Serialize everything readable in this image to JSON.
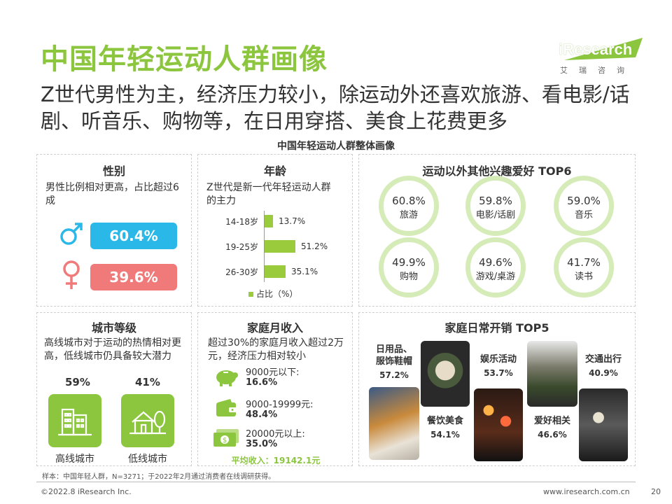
{
  "header": {
    "title": "中国年轻运动人群画像",
    "subtitle": "Z世代男性为主，经济压力较小，除运动外还喜欢旅游、看电影/话剧、听音乐、购物等，在日用穿搭、美食上花费更多",
    "logo_text": "iResearch",
    "logo_cn": "艾瑞咨询"
  },
  "section_title": "中国年轻运动人群整体画像",
  "gender": {
    "title": "性别",
    "desc": "男性比例相对更高，占比超过6成",
    "male_value": "60.4%",
    "female_value": "39.6%",
    "male_color": "#29b8e8",
    "female_color": "#f07a7a"
  },
  "age": {
    "title": "年龄",
    "desc": "Z世代是新一代年轻运动人群的主力",
    "legend": "占比（%）",
    "chart_data": {
      "type": "bar",
      "categories": [
        "14-18岁",
        "19-25岁",
        "26-30岁"
      ],
      "values": [
        13.7,
        51.2,
        35.1
      ],
      "value_labels": [
        "13.7%",
        "51.2%",
        "35.1%"
      ]
    }
  },
  "hobbies": {
    "title": "运动以外其他兴趣爱好 TOP6",
    "items": [
      {
        "value": "60.8%",
        "label": "旅游"
      },
      {
        "value": "59.8%",
        "label": "电影/话剧"
      },
      {
        "value": "59.0%",
        "label": "音乐"
      },
      {
        "value": "49.9%",
        "label": "购物"
      },
      {
        "value": "49.6%",
        "label": "游戏/桌游"
      },
      {
        "value": "41.7%",
        "label": "读书"
      }
    ]
  },
  "city": {
    "title": "城市等级",
    "desc": "高线城市对于运动的热情相对更高，低线城市仍具备较大潜力",
    "high_value": "59%",
    "low_value": "41%",
    "high_label": "高线城市",
    "low_label": "低线城市"
  },
  "income": {
    "title": "家庭月收入",
    "desc": "超过30%的家庭月收入超过2万元，经济压力相对较小",
    "rows": [
      {
        "label": "9000元以下:",
        "value": "16.6%"
      },
      {
        "label": "9000-19999元:",
        "value": "48.4%"
      },
      {
        "label": "20000元以上:",
        "value": "35.0%"
      }
    ],
    "average": "平均收入：19142.1元"
  },
  "spending": {
    "title": "家庭日常开销 TOP5",
    "items": [
      {
        "label_1": "日用品、",
        "label_2": "服饰鞋帽",
        "value": "57.2%"
      },
      {
        "label_1": "餐饮美食",
        "label_2": "",
        "value": "54.1%"
      },
      {
        "label_1": "娱乐活动",
        "label_2": "",
        "value": "53.7%"
      },
      {
        "label_1": "爱好相关",
        "label_2": "",
        "value": "46.6%"
      },
      {
        "label_1": "交通出行",
        "label_2": "",
        "value": "40.9%"
      }
    ]
  },
  "footer": {
    "note": "样本：中国年轻人群，N=3271；于2022年2月通过消费者在线调研获得。",
    "copyright": "©2022.8 iResearch Inc.",
    "website": "www.iresearch.com.cn",
    "page": "20"
  }
}
